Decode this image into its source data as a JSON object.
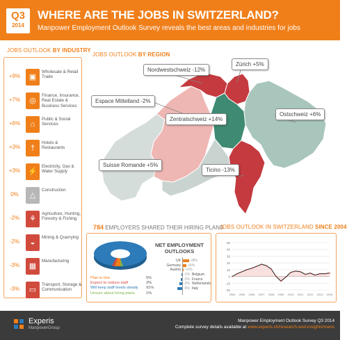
{
  "header": {
    "quarter": "Q3",
    "year": "2014",
    "title": "WHERE ARE THE JOBS IN SWITZERLAND?",
    "subtitle": "Manpower Employment Outlook Survey reveals the best areas and industries for jobs",
    "color": "#f07f1a"
  },
  "industry": {
    "title_prefix": "JOBS OUTLOOK",
    "title_bold": "BY INDUSTRY",
    "items": [
      {
        "value": "+9%",
        "label": "Wholesale & Retail Trade",
        "icon": "shopping-bag-icon"
      },
      {
        "value": "+7%",
        "label": "Finance, Insurance, Real Estate & Business Services",
        "icon": "coins-icon"
      },
      {
        "value": "+6%",
        "label": "Public & Social Services",
        "icon": "public-services-icon"
      },
      {
        "value": "+3%",
        "label": "Hotels & Restaurants",
        "icon": "cutlery-icon"
      },
      {
        "value": "+3%",
        "label": "Electricity, Gas & Water Supply",
        "icon": "plug-icon"
      },
      {
        "value": "0%",
        "label": "Construction",
        "icon": "crane-icon"
      },
      {
        "value": "-2%",
        "label": "Agriculture, Hunting, Forestry & Fishing",
        "icon": "wheat-icon"
      },
      {
        "value": "-2%",
        "label": "Mining & Quarrying",
        "icon": "helmet-icon"
      },
      {
        "value": "-3%",
        "label": "Manufacturing",
        "icon": "factory-icon"
      },
      {
        "value": "-3%",
        "label": "Transport, Storage & Communication",
        "icon": "truck-icon"
      }
    ]
  },
  "region": {
    "title_prefix": "JOBS OUTLOOK",
    "title_bold": "BY REGION",
    "callouts": [
      {
        "label": "Nordwestschweiz -12%"
      },
      {
        "label": "Zürich +5%"
      },
      {
        "label": "Espace Mittelland -2%"
      },
      {
        "label": "Zentralschweiz +14%"
      },
      {
        "label": "Ostschweiz +6%"
      },
      {
        "label": "Suisse Romande +5%"
      },
      {
        "label": "Ticino -13%"
      }
    ]
  },
  "plans": {
    "count": "784",
    "title_rest": "EMPLOYERS SHARED THEIR HIRING PLANS",
    "net_title": "NET EMPLOYMENT OUTLOOKS",
    "legend": [
      {
        "label": "Plan to hire",
        "value": "5%",
        "color": "#f07f1a"
      },
      {
        "label": "Expect to reduce staff",
        "value": "3%",
        "color": "#d14b3d"
      },
      {
        "label": "Will keep staff levels steady",
        "value": "91%",
        "color": "#2d7bb8"
      },
      {
        "label": "Unsure about hiring plans",
        "value": "1%",
        "color": "#7ab648"
      }
    ],
    "countries_up": [
      {
        "name": "UK",
        "value": "+8%"
      },
      {
        "name": "Germany",
        "value": "+5%"
      },
      {
        "name": "Austria",
        "value": "+2%"
      }
    ],
    "countries_down": [
      {
        "name": "Belgium",
        "value": "-1%"
      },
      {
        "name": "France",
        "value": "-2%"
      },
      {
        "name": "Netherlands",
        "value": "-3%"
      },
      {
        "name": "Italy",
        "value": "-6%"
      }
    ]
  },
  "since": {
    "title_prefix": "JOBS OUTLOOK IN SWITZERLAND",
    "title_bold": "SINCE 2004"
  },
  "chart_data": {
    "type": "line",
    "title": "JOBS OUTLOOK IN SWITZERLAND SINCE 2004",
    "x": [
      "2004 Q3",
      "2005 Q1",
      "2005 Q3",
      "2006 Q1",
      "2006 Q3",
      "2007 Q1",
      "2007 Q3",
      "2008 Q1",
      "2008 Q3",
      "2009 Q1",
      "2009 Q3",
      "2010 Q1",
      "2010 Q3",
      "2011 Q1",
      "2011 Q3",
      "2012 Q1",
      "2012 Q3",
      "2013 Q1",
      "2013 Q3",
      "2014 Q1",
      "2014 Q3"
    ],
    "x_tick_labels": [
      "2004",
      "2005",
      "2006",
      "2007",
      "2008",
      "2009",
      "2010",
      "2011",
      "2012",
      "2013",
      "2014"
    ],
    "y_ticks": [
      50,
      40,
      30,
      20,
      10,
      0,
      -10,
      -20
    ],
    "ylim": [
      -20,
      50
    ],
    "series": [
      {
        "values": [
          0,
          4,
          7,
          10,
          12,
          15,
          18,
          16,
          11,
          0,
          -7,
          -1,
          6,
          8,
          7,
          3,
          5,
          2,
          4,
          4,
          5
        ]
      }
    ],
    "grid": true
  },
  "footer": {
    "brand": "Experis",
    "brand_sub": "ManpowerGroup",
    "line1": "Manpower Employment Outlook Survey Q3 2014",
    "line2_prefix": "Complete survey details available at",
    "line2_link": "www.experis.ch/research-and-insights/meos"
  }
}
